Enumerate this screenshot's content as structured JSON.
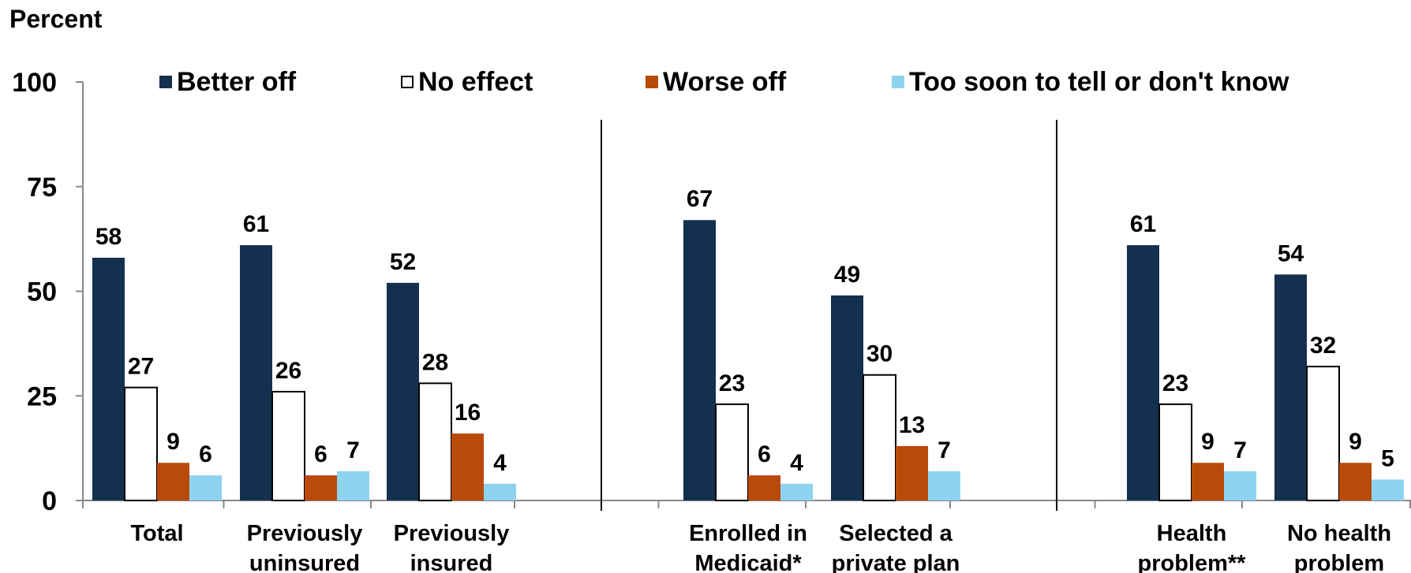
{
  "chart_data": {
    "type": "bar",
    "ylabel": "Percent",
    "ylim": [
      0,
      100
    ],
    "yticks": [
      0,
      25,
      50,
      75,
      100
    ],
    "grid": false,
    "legend_position": "top",
    "series": [
      {
        "name": "Better off",
        "color": "#14304f",
        "values": [
          58,
          61,
          52,
          67,
          49,
          61,
          54
        ]
      },
      {
        "name": "No effect",
        "color": "#ffffff",
        "values": [
          27,
          26,
          28,
          23,
          30,
          23,
          32
        ]
      },
      {
        "name": "Worse off",
        "color": "#b94a0a",
        "values": [
          9,
          6,
          16,
          6,
          13,
          9,
          9
        ]
      },
      {
        "name": "Too soon to tell or don't know",
        "color": "#8dd3f0",
        "values": [
          6,
          7,
          4,
          4,
          7,
          7,
          5
        ]
      }
    ],
    "categories": [
      [
        "Total"
      ],
      [
        "Previously",
        "uninsured"
      ],
      [
        "Previously",
        "insured"
      ],
      [
        "Enrolled in",
        "Medicaid*"
      ],
      [
        "Selected a",
        "private plan"
      ],
      [
        "Health",
        "problem**"
      ],
      [
        "No health",
        "problem"
      ]
    ]
  }
}
